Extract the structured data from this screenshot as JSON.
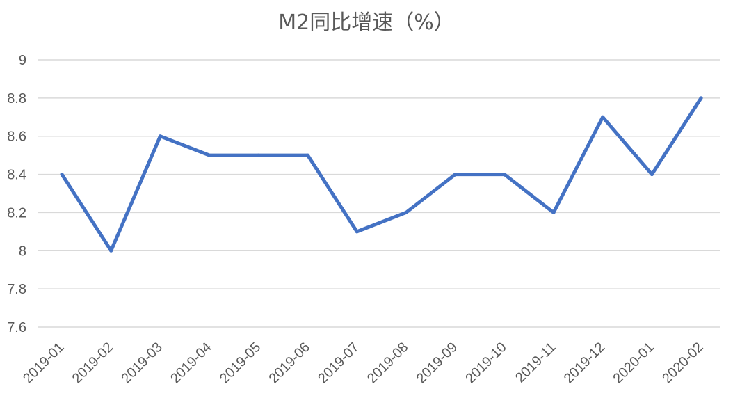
{
  "chart_data": {
    "type": "line",
    "title": "M2同比增速（%）",
    "xlabel": "",
    "ylabel": "",
    "categories": [
      "2019-01",
      "2019-02",
      "2019-03",
      "2019-04",
      "2019-05",
      "2019-06",
      "2019-07",
      "2019-08",
      "2019-09",
      "2019-10",
      "2019-11",
      "2019-12",
      "2020-01",
      "2020-02"
    ],
    "series": [
      {
        "values": [
          8.4,
          8.0,
          8.6,
          8.5,
          8.5,
          8.5,
          8.1,
          8.2,
          8.4,
          8.4,
          8.2,
          8.7,
          8.4,
          8.8
        ],
        "color": "#4472c4"
      }
    ],
    "ylim": [
      7.6,
      9
    ],
    "yticks": [
      "9",
      "8.8",
      "8.6",
      "8.4",
      "8.2",
      "8",
      "7.8",
      "7.6"
    ],
    "grid": true,
    "legend": "none",
    "colors": {
      "line": "#4472c4",
      "grid": "#d9d9d9",
      "text": "#595959"
    }
  }
}
